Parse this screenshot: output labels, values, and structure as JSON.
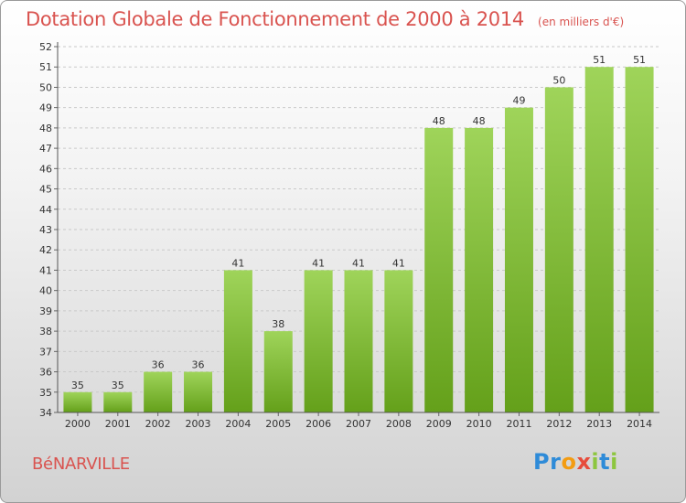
{
  "header": {
    "title": "Dotation Globale de Fonctionnement de 2000 à 2014",
    "unit": "(en milliers d'€)"
  },
  "commune": "BéNARVILLE",
  "logo": {
    "letters": [
      "P",
      "r",
      "o",
      "x",
      "i",
      "t",
      "i"
    ],
    "colors": [
      "#2e8bd8",
      "#2e8bd8",
      "#f39c12",
      "#e74c3c",
      "#8dc63f",
      "#2e8bd8",
      "#8dc63f"
    ]
  },
  "chart_data": {
    "type": "bar",
    "title": "Dotation Globale de Fonctionnement de 2000 à 2014",
    "categories": [
      "2000",
      "2001",
      "2002",
      "2003",
      "2004",
      "2005",
      "2006",
      "2007",
      "2008",
      "2009",
      "2010",
      "2011",
      "2012",
      "2013",
      "2014"
    ],
    "values": [
      35,
      35,
      36,
      36,
      41,
      38,
      41,
      41,
      41,
      48,
      48,
      49,
      50,
      51,
      51
    ],
    "ylim": [
      34,
      52
    ],
    "yticks": [
      34,
      35,
      36,
      37,
      38,
      39,
      40,
      41,
      42,
      43,
      44,
      45,
      46,
      47,
      48,
      49,
      50,
      51,
      52
    ],
    "grid": true,
    "bar_color_top": "#9fd45a",
    "bar_color_bottom": "#64a01a"
  }
}
